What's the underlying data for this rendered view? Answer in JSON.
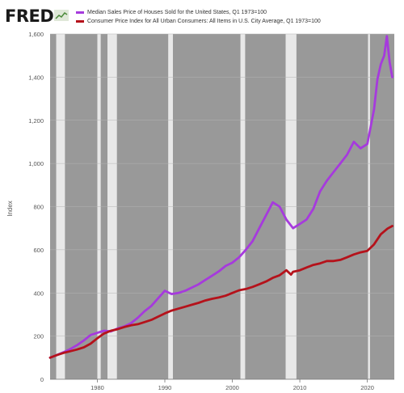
{
  "header": {
    "logo_text": "FRED"
  },
  "chart_data": {
    "type": "line",
    "title": "",
    "xlabel": "",
    "ylabel": "Index",
    "xlim": [
      1973,
      2024
    ],
    "ylim": [
      0,
      1600
    ],
    "yticks": [
      0,
      200,
      400,
      600,
      800,
      1000,
      1200,
      1400,
      1600
    ],
    "ytick_labels": [
      "0",
      "200",
      "400",
      "600",
      "800",
      "1,000",
      "1,200",
      "1,400",
      "1,600"
    ],
    "xticks": [
      1980,
      1990,
      2000,
      2010,
      2020
    ],
    "xtick_labels": [
      "1980",
      "1990",
      "2000",
      "2010",
      "2020"
    ],
    "grid": true,
    "legend_position": "top",
    "plot_background": "#999999",
    "recession_shade_color": "#e8e8e8",
    "recessions": [
      [
        1973.9,
        1975.2
      ],
      [
        1980.0,
        1980.5
      ],
      [
        1981.5,
        1982.9
      ],
      [
        1990.5,
        1991.2
      ],
      [
        2001.2,
        2001.9
      ],
      [
        2007.9,
        2009.5
      ],
      [
        2020.1,
        2020.4
      ]
    ],
    "series": [
      {
        "name": "Median Sales Price of Houses Sold for the United States, Q1 1973=100",
        "color": "#a63add",
        "x": [
          1973,
          1974,
          1975,
          1976,
          1977,
          1978,
          1979,
          1980,
          1981,
          1982,
          1983,
          1984,
          1985,
          1986,
          1987,
          1988,
          1989,
          1990,
          1991,
          1992,
          1993,
          1994,
          1995,
          1996,
          1997,
          1998,
          1999,
          2000,
          2001,
          2002,
          2003,
          2004,
          2005,
          2006,
          2007,
          2008,
          2009,
          2010,
          2011,
          2012,
          2013,
          2014,
          2015,
          2016,
          2017,
          2018,
          2019,
          2020,
          2021,
          2021.5,
          2022,
          2022.5,
          2022.9,
          2023.3,
          2023.7
        ],
        "values": [
          100,
          112,
          125,
          140,
          158,
          180,
          205,
          215,
          225,
          222,
          235,
          245,
          260,
          285,
          315,
          340,
          375,
          410,
          395,
          400,
          410,
          425,
          440,
          460,
          480,
          500,
          525,
          540,
          565,
          600,
          640,
          700,
          760,
          820,
          800,
          740,
          700,
          720,
          740,
          790,
          870,
          920,
          960,
          1000,
          1040,
          1100,
          1070,
          1090,
          1250,
          1390,
          1460,
          1500,
          1590,
          1470,
          1400
        ]
      },
      {
        "name": "Consumer Price Index for All Urban Consumers: All Items in U.S. City Average, Q1 1973=100",
        "color": "#b5121b",
        "x": [
          1973,
          1974,
          1975,
          1976,
          1977,
          1978,
          1979,
          1980,
          1981,
          1982,
          1983,
          1984,
          1985,
          1986,
          1987,
          1988,
          1989,
          1990,
          1991,
          1992,
          1993,
          1994,
          1995,
          1996,
          1997,
          1998,
          1999,
          2000,
          2001,
          2002,
          2003,
          2004,
          2005,
          2006,
          2007,
          2008,
          2008.7,
          2009,
          2010,
          2011,
          2012,
          2013,
          2014,
          2015,
          2016,
          2017,
          2018,
          2019,
          2020,
          2021,
          2022,
          2023,
          2023.7
        ],
        "values": [
          100,
          112,
          122,
          130,
          138,
          148,
          165,
          190,
          212,
          225,
          232,
          242,
          250,
          255,
          265,
          275,
          290,
          305,
          318,
          327,
          336,
          345,
          354,
          365,
          373,
          379,
          387,
          400,
          412,
          418,
          428,
          440,
          453,
          470,
          482,
          505,
          485,
          498,
          505,
          518,
          530,
          537,
          548,
          548,
          553,
          565,
          578,
          588,
          595,
          625,
          672,
          698,
          710
        ]
      }
    ]
  }
}
